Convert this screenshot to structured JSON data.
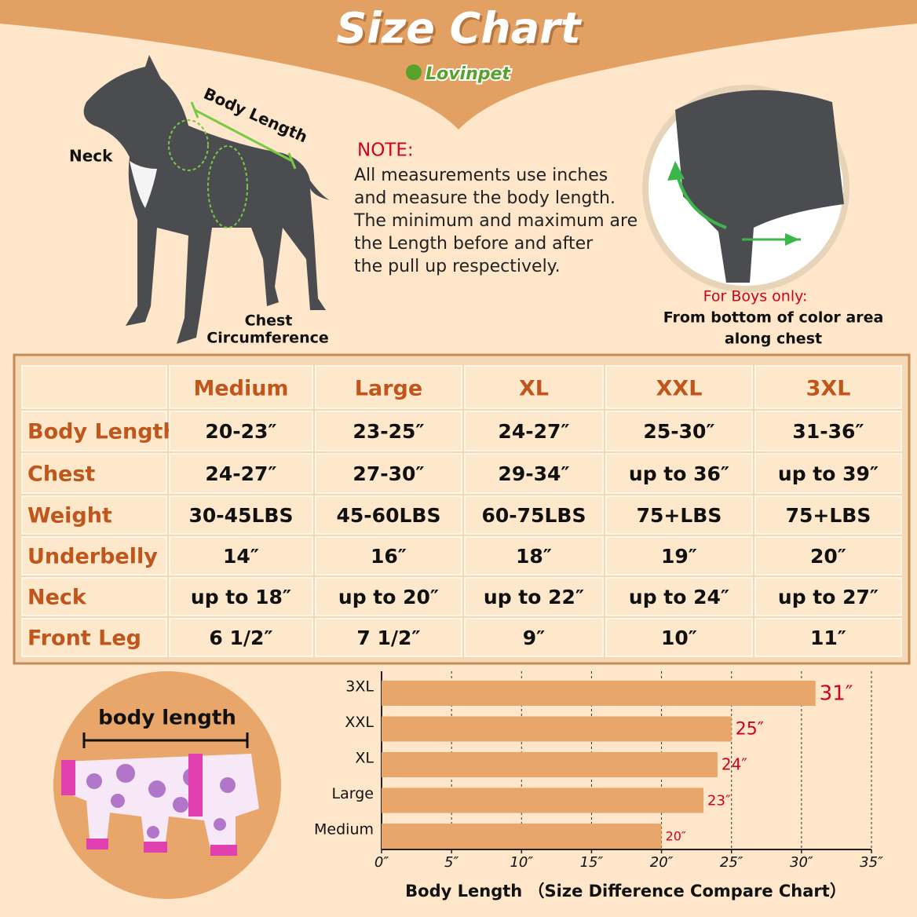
{
  "header": {
    "title": "Size Chart",
    "brand": "Lovinpet"
  },
  "dog_labels": {
    "body_length": "Body Length",
    "neck": "Neck",
    "chest": "Chest",
    "circumference": "Circumference"
  },
  "note": {
    "title": "NOTE:",
    "lines": [
      "All measurements use inches",
      "and measure the body length.",
      "The minimum and maximum are",
      "the Length before and after",
      "the pull up respectively."
    ]
  },
  "boys_note": {
    "title": "For Boys only:",
    "lines": [
      "From bottom of color area",
      "along chest"
    ]
  },
  "table": {
    "columns": [
      "Medium",
      "Large",
      "XL",
      "XXL",
      "3XL"
    ],
    "rows": [
      {
        "label": "Body Length",
        "cells": [
          "20-23″",
          "23-25″",
          "24-27″",
          "25-30″",
          "31-36″"
        ]
      },
      {
        "label": "Chest",
        "cells": [
          "24-27″",
          "27-30″",
          "29-34″",
          "up to 36″",
          "up to 39″"
        ]
      },
      {
        "label": "Weight",
        "cells": [
          "30-45LBS",
          "45-60LBS",
          "60-75LBS",
          "75+LBS",
          "75+LBS"
        ]
      },
      {
        "label": "Underbelly",
        "cells": [
          "14″",
          "16″",
          "18″",
          "19″",
          "20″"
        ]
      },
      {
        "label": "Neck",
        "cells": [
          "up to 18″",
          "up to 20″",
          "up to 22″",
          "up to 24″",
          "up to 27″"
        ]
      },
      {
        "label": "Front Leg",
        "cells": [
          "6 1/2″",
          "7 1/2″",
          "9″",
          "10″",
          "11″"
        ]
      }
    ]
  },
  "photo_label": "body length",
  "chart_data": {
    "type": "bar",
    "orientation": "horizontal",
    "x_label": "Body Length （Size Difference Compare Chart）",
    "categories": [
      "Medium",
      "Large",
      "XL",
      "XXL",
      "3XL"
    ],
    "values": [
      20,
      23,
      24,
      25,
      31
    ],
    "value_labels": [
      "20″",
      "23″",
      "24″",
      "25″",
      "31″"
    ],
    "color": "#e8a66a",
    "label_color": "#d0021b",
    "xlim": [
      0,
      35
    ],
    "xticks": [
      {
        "value": 0,
        "label": "0″"
      },
      {
        "value": 5,
        "label": "5″"
      },
      {
        "value": 10,
        "label": "10″"
      },
      {
        "value": 15,
        "label": "15″"
      },
      {
        "value": 20,
        "label": "20″"
      },
      {
        "value": 25,
        "label": "25″"
      },
      {
        "value": 30,
        "label": "30″"
      },
      {
        "value": 35,
        "label": "35″"
      }
    ],
    "grid": true
  }
}
